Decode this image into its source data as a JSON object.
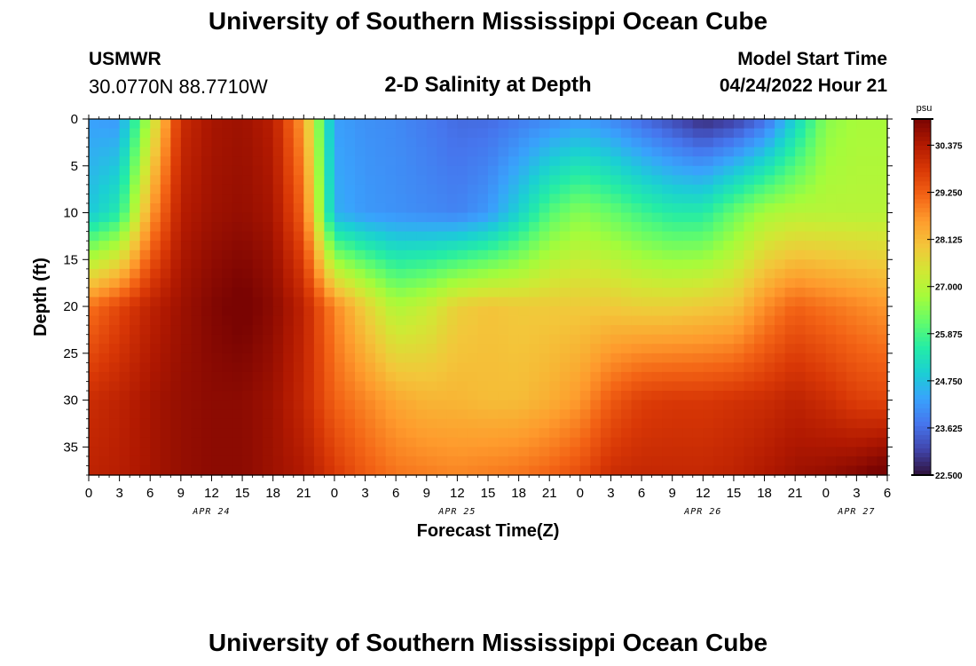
{
  "header": {
    "title": "University of Southern Mississippi Ocean Cube",
    "station": "USMWR",
    "coordinates": "30.0770N  88.7710W",
    "subtitle": "2-D Salinity at Depth",
    "model_start_label": "Model Start Time",
    "model_start_value": "04/24/2022 Hour 21"
  },
  "footer": {
    "title": "University of Southern Mississippi Ocean Cube"
  },
  "chart_data": {
    "type": "heatmap",
    "xlabel": "Forecast Time(Z)",
    "ylabel": "Depth (ft)",
    "colorbar_unit": "psu",
    "x_range_hours": [
      0,
      78
    ],
    "x_tick_labels": [
      "0",
      "3",
      "6",
      "9",
      "12",
      "15",
      "18",
      "21",
      "0",
      "3",
      "6",
      "9",
      "12",
      "15",
      "18",
      "21",
      "0",
      "3",
      "6",
      "9",
      "12",
      "15",
      "18",
      "21",
      "0",
      "3",
      "6"
    ],
    "date_labels": [
      {
        "label": "APR 24",
        "hour": 12
      },
      {
        "label": "APR 25",
        "hour": 36
      },
      {
        "label": "APR 26",
        "hour": 60
      },
      {
        "label": "APR 27",
        "hour": 75
      }
    ],
    "y_range": [
      0,
      38
    ],
    "y_ticks": [
      0,
      5,
      10,
      15,
      20,
      25,
      30,
      35
    ],
    "colorbar_ticks": [
      "30.375",
      "29.250",
      "28.125",
      "27.000",
      "25.875",
      "24.750",
      "23.625",
      "22.500"
    ],
    "color_range": [
      22.5,
      31.0
    ],
    "colormap": [
      "#30123b",
      "#4145ab",
      "#4675ed",
      "#39a2fc",
      "#1bcfd4",
      "#24eca6",
      "#61fc6c",
      "#a4fc3b",
      "#d1e834",
      "#f3c63a",
      "#fe9b2d",
      "#f36315",
      "#d93806",
      "#b11901",
      "#7a0402"
    ],
    "grid": false,
    "legend_position": "right",
    "series": [
      {
        "name": "salinity_at_depth_0_ft",
        "x": [
          0,
          3,
          6,
          9,
          12,
          15,
          18,
          21,
          24,
          27,
          30,
          33,
          36,
          39,
          42,
          45,
          48,
          51,
          54,
          57,
          60,
          63,
          66,
          69,
          72,
          75,
          78
        ],
        "values": [
          24.3,
          24.2,
          27.0,
          30.0,
          30.5,
          30.6,
          30.3,
          28.5,
          24.3,
          24.1,
          24.0,
          23.8,
          23.6,
          23.6,
          23.8,
          24.0,
          24.2,
          24.0,
          23.6,
          23.2,
          22.8,
          23.0,
          23.6,
          25.0,
          26.5,
          26.8,
          26.8
        ]
      },
      {
        "name": "salinity_at_depth_10_ft",
        "x": [
          0,
          3,
          6,
          9,
          12,
          15,
          18,
          21,
          24,
          27,
          30,
          33,
          36,
          39,
          42,
          45,
          48,
          51,
          54,
          57,
          60,
          63,
          66,
          69,
          72,
          75,
          78
        ],
        "values": [
          24.8,
          25.5,
          28.5,
          30.3,
          30.6,
          30.7,
          30.5,
          29.2,
          24.5,
          24.2,
          24.1,
          24.0,
          23.9,
          24.2,
          25.0,
          26.0,
          26.5,
          26.2,
          25.8,
          25.5,
          25.5,
          26.2,
          26.8,
          27.0,
          27.0,
          27.0,
          27.0
        ]
      },
      {
        "name": "salinity_at_depth_20_ft",
        "x": [
          0,
          3,
          6,
          9,
          12,
          15,
          18,
          21,
          24,
          27,
          30,
          33,
          36,
          39,
          42,
          45,
          48,
          51,
          54,
          57,
          60,
          63,
          66,
          69,
          72,
          75,
          78
        ],
        "values": [
          29.0,
          29.6,
          30.2,
          30.6,
          30.9,
          31.1,
          30.8,
          30.2,
          28.8,
          27.8,
          26.9,
          27.2,
          27.8,
          28.0,
          27.9,
          27.9,
          27.9,
          27.9,
          27.8,
          27.8,
          27.9,
          28.0,
          28.7,
          29.2,
          29.0,
          28.8,
          28.6
        ]
      },
      {
        "name": "salinity_at_depth_30_ft",
        "x": [
          0,
          3,
          6,
          9,
          12,
          15,
          18,
          21,
          24,
          27,
          30,
          33,
          36,
          39,
          42,
          45,
          48,
          51,
          54,
          57,
          60,
          63,
          66,
          69,
          72,
          75,
          78
        ],
        "values": [
          30.0,
          30.2,
          30.5,
          30.7,
          30.8,
          30.8,
          30.6,
          30.1,
          29.2,
          28.8,
          28.4,
          28.2,
          28.2,
          28.1,
          28.1,
          28.3,
          28.6,
          29.3,
          29.7,
          29.8,
          29.8,
          29.9,
          30.0,
          30.2,
          30.0,
          29.7,
          29.6
        ]
      },
      {
        "name": "salinity_at_depth_38_ft",
        "x": [
          0,
          3,
          6,
          9,
          12,
          15,
          18,
          21,
          24,
          27,
          30,
          33,
          36,
          39,
          42,
          45,
          48,
          51,
          54,
          57,
          60,
          63,
          66,
          69,
          72,
          75,
          78
        ],
        "values": [
          30.2,
          30.3,
          30.5,
          30.7,
          30.8,
          30.8,
          30.6,
          30.4,
          29.8,
          29.3,
          29.0,
          28.9,
          28.8,
          28.9,
          29.0,
          29.2,
          29.5,
          30.0,
          30.1,
          30.1,
          30.1,
          30.2,
          30.4,
          30.6,
          30.7,
          30.9,
          31.2
        ]
      }
    ]
  }
}
